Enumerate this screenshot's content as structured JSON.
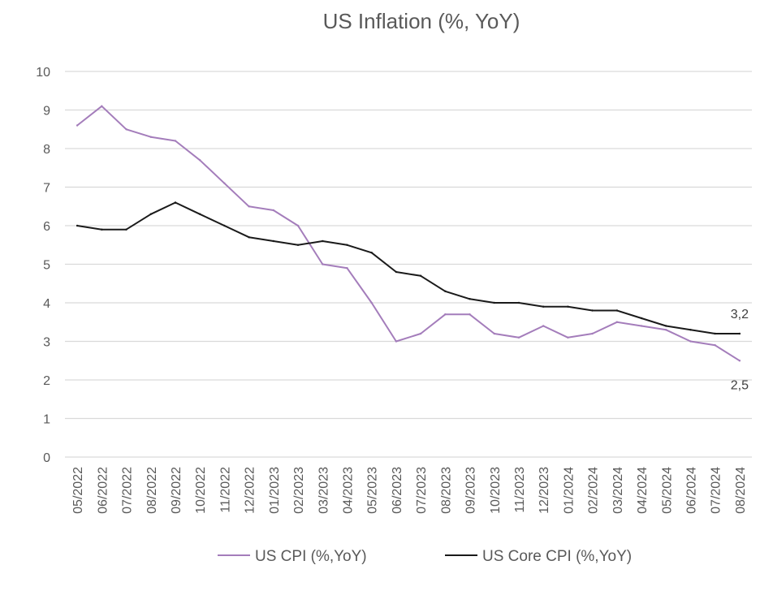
{
  "chart_data": {
    "type": "line",
    "title": "US Inflation (%, YoY)",
    "xlabel": "",
    "ylabel": "",
    "ylim": [
      0,
      10
    ],
    "yticks": [
      "0",
      "1",
      "2",
      "3",
      "4",
      "5",
      "6",
      "7",
      "8",
      "9",
      "10"
    ],
    "grid": true,
    "legend_position": "bottom",
    "categories": [
      "05/2022",
      "06/2022",
      "07/2022",
      "08/2022",
      "09/2022",
      "10/2022",
      "11/2022",
      "12/2022",
      "01/2023",
      "02/2023",
      "03/2023",
      "04/2023",
      "05/2023",
      "06/2023",
      "07/2023",
      "08/2023",
      "09/2023",
      "10/2023",
      "11/2023",
      "12/2023",
      "01/2024",
      "02/2024",
      "03/2024",
      "04/2024",
      "05/2024",
      "06/2024",
      "07/2024",
      "08/2024"
    ],
    "series": [
      {
        "name": "US CPI (%,YoY)",
        "color": "#a47dbb",
        "values": [
          8.6,
          9.1,
          8.5,
          8.3,
          8.2,
          7.7,
          7.1,
          6.5,
          6.4,
          6.0,
          5.0,
          4.9,
          4.0,
          3.0,
          3.2,
          3.7,
          3.7,
          3.2,
          3.1,
          3.4,
          3.1,
          3.2,
          3.5,
          3.4,
          3.3,
          3.0,
          2.9,
          2.5
        ],
        "end_label": "2,5"
      },
      {
        "name": "US Core CPI (%,YoY)",
        "color": "#1a1a1a",
        "values": [
          6.0,
          5.9,
          5.9,
          6.3,
          6.6,
          6.3,
          6.0,
          5.7,
          5.6,
          5.5,
          5.6,
          5.5,
          5.3,
          4.8,
          4.7,
          4.3,
          4.1,
          4.0,
          4.0,
          3.9,
          3.9,
          3.8,
          3.8,
          3.6,
          3.4,
          3.3,
          3.2,
          3.2
        ],
        "end_label": "3,2"
      }
    ]
  }
}
